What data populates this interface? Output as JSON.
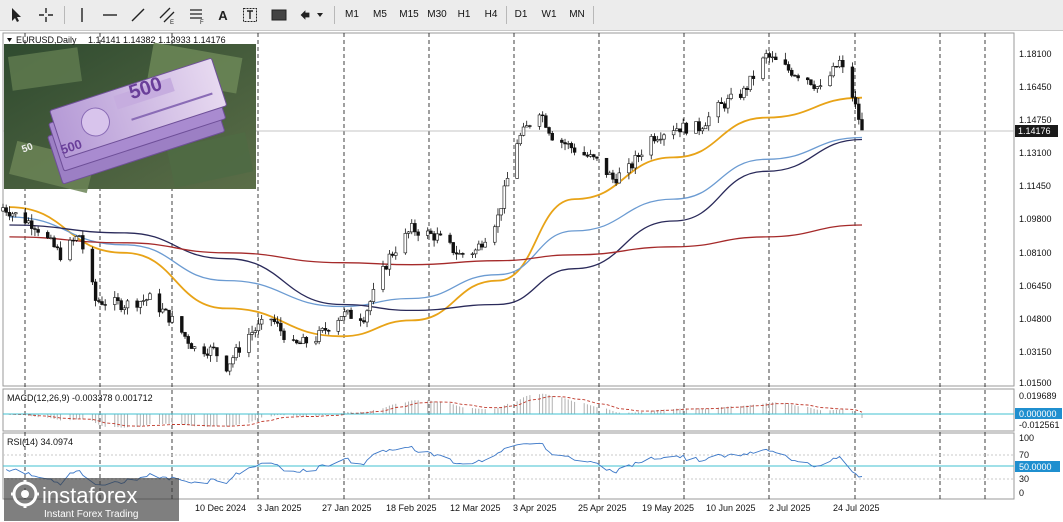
{
  "toolbar": {
    "tools": [
      {
        "name": "cursor",
        "icon": "cursor-icon"
      },
      {
        "name": "crosshair",
        "icon": "crosshair-icon"
      },
      {
        "name": "vertical-line",
        "icon": "vertical-line-icon"
      },
      {
        "name": "horizontal-line",
        "icon": "horizontal-line-icon"
      },
      {
        "name": "trend-line",
        "icon": "trend-line-icon"
      },
      {
        "name": "equidistant-channel",
        "icon": "channel-icon"
      },
      {
        "name": "fibonacci",
        "icon": "fibonacci-icon"
      },
      {
        "name": "text",
        "icon": "text-icon"
      },
      {
        "name": "text-label",
        "icon": "text-label-icon"
      },
      {
        "name": "rectangle",
        "icon": "rectangle-icon"
      },
      {
        "name": "arrows",
        "icon": "arrow-shapes-icon"
      }
    ],
    "text_tool_glyph": "A",
    "timeframes": [
      "M1",
      "M5",
      "M15",
      "M30",
      "H1",
      "H4",
      "D1",
      "W1",
      "MN"
    ]
  },
  "main": {
    "symbol_label": "EURUSD,Daily",
    "ohlc": "1.14141 1.14382 1.13933 1.14176",
    "price_ticks": [
      "1.18100",
      "1.16450",
      "1.14750",
      "1.13100",
      "1.11450",
      "1.09800",
      "1.08100",
      "1.06450",
      "1.04800",
      "1.03150",
      "1.01500"
    ],
    "current_price": "1.14176",
    "date_labels": [
      "",
      "",
      "10 Dec 2024",
      "3 Jan 2025",
      "27 Jan 2025",
      "18 Feb 2025",
      "12 Mar 2025",
      "3 Apr 2025",
      "25 Apr 2025",
      "19 May 2025",
      "10 Jun 2025",
      "2 Jul 2025",
      "24 Jul 2025"
    ]
  },
  "macd": {
    "label": "MACD(12,26,9) -0.003378 0.001712",
    "ticks": [
      "0.019689",
      "0.000000",
      "-0.012561"
    ]
  },
  "rsi": {
    "label": "RSI(14) 34.0974",
    "ticks": [
      "100",
      "70",
      "50.0000",
      "30",
      "0"
    ]
  },
  "watermark": {
    "brand": "instaforex",
    "tagline": "Instant Forex Trading"
  },
  "chart_data": {
    "type": "candlestick",
    "symbol": "EURUSD",
    "timeframe": "Daily",
    "x_range": [
      "2024-11",
      "2025-07-31"
    ],
    "y_range": [
      1.015,
      1.181
    ],
    "last_candle": {
      "open": 1.14141,
      "high": 1.14382,
      "low": 1.13933,
      "close": 1.14176
    },
    "price_path": [
      [
        "2024-11-06",
        1.101
      ],
      [
        "2024-11-14",
        1.094
      ],
      [
        "2024-11-22",
        1.079
      ],
      [
        "2024-11-28",
        1.089
      ],
      [
        "2024-12-03",
        1.056
      ],
      [
        "2024-12-12",
        1.054
      ],
      [
        "2024-12-20",
        1.057
      ],
      [
        "2024-12-27",
        1.046
      ],
      [
        "2025-01-03",
        1.032
      ],
      [
        "2025-01-09",
        1.031
      ],
      [
        "2025-01-13",
        1.023
      ],
      [
        "2025-01-20",
        1.039
      ],
      [
        "2025-01-27",
        1.047
      ],
      [
        "2025-02-03",
        1.033
      ],
      [
        "2025-02-10",
        1.037
      ],
      [
        "2025-02-18",
        1.049
      ],
      [
        "2025-02-25",
        1.048
      ],
      [
        "2025-03-05",
        1.078
      ],
      [
        "2025-03-12",
        1.092
      ],
      [
        "2025-03-20",
        1.088
      ],
      [
        "2025-03-27",
        1.079
      ],
      [
        "2025-04-01",
        1.081
      ],
      [
        "2025-04-08",
        1.098
      ],
      [
        "2025-04-14",
        1.136
      ],
      [
        "2025-04-21",
        1.152
      ],
      [
        "2025-04-25",
        1.139
      ],
      [
        "2025-05-02",
        1.132
      ],
      [
        "2025-05-09",
        1.126
      ],
      [
        "2025-05-14",
        1.117
      ],
      [
        "2025-05-19",
        1.122
      ],
      [
        "2025-05-26",
        1.138
      ],
      [
        "2025-06-02",
        1.143
      ],
      [
        "2025-06-10",
        1.143
      ],
      [
        "2025-06-16",
        1.153
      ],
      [
        "2025-06-24",
        1.161
      ],
      [
        "2025-07-01",
        1.179
      ],
      [
        "2025-07-08",
        1.172
      ],
      [
        "2025-07-14",
        1.168
      ],
      [
        "2025-07-18",
        1.162
      ],
      [
        "2025-07-24",
        1.176
      ],
      [
        "2025-07-28",
        1.159
      ],
      [
        "2025-07-31",
        1.142
      ]
    ],
    "moving_averages": [
      {
        "color": "#e8a317",
        "path": [
          [
            "2024-11-06",
            1.103
          ],
          [
            "2024-12-12",
            1.08
          ],
          [
            "2025-01-13",
            1.052
          ],
          [
            "2025-02-18",
            1.038
          ],
          [
            "2025-03-12",
            1.046
          ],
          [
            "2025-04-08",
            1.066
          ],
          [
            "2025-05-02",
            1.107
          ],
          [
            "2025-06-02",
            1.128
          ],
          [
            "2025-07-01",
            1.148
          ],
          [
            "2025-07-31",
            1.158
          ]
        ]
      },
      {
        "color": "#6b9bd2",
        "path": [
          [
            "2024-11-06",
            1.098
          ],
          [
            "2024-12-12",
            1.084
          ],
          [
            "2025-01-13",
            1.066
          ],
          [
            "2025-02-18",
            1.053
          ],
          [
            "2025-03-12",
            1.057
          ],
          [
            "2025-04-08",
            1.069
          ],
          [
            "2025-05-02",
            1.091
          ],
          [
            "2025-06-02",
            1.107
          ],
          [
            "2025-07-01",
            1.127
          ],
          [
            "2025-07-31",
            1.138
          ]
        ]
      },
      {
        "color": "#2a2a5a",
        "path": [
          [
            "2024-11-06",
            1.094
          ],
          [
            "2024-12-12",
            1.09
          ],
          [
            "2025-01-13",
            1.077
          ],
          [
            "2025-02-18",
            1.054
          ],
          [
            "2025-03-12",
            1.051
          ],
          [
            "2025-04-08",
            1.054
          ],
          [
            "2025-05-02",
            1.072
          ],
          [
            "2025-06-02",
            1.096
          ],
          [
            "2025-07-01",
            1.121
          ],
          [
            "2025-07-31",
            1.137
          ]
        ]
      },
      {
        "color": "#a52a2a",
        "path": [
          [
            "2024-11-06",
            1.088
          ],
          [
            "2024-12-12",
            1.085
          ],
          [
            "2025-01-13",
            1.08
          ],
          [
            "2025-02-18",
            1.075
          ],
          [
            "2025-03-12",
            1.074
          ],
          [
            "2025-04-08",
            1.076
          ],
          [
            "2025-05-02",
            1.079
          ],
          [
            "2025-06-02",
            1.083
          ],
          [
            "2025-07-01",
            1.088
          ],
          [
            "2025-07-31",
            1.094
          ]
        ]
      }
    ],
    "rsi_last": 34.0974,
    "macd_last": -0.003378,
    "macd_signal_last": 0.001712
  }
}
